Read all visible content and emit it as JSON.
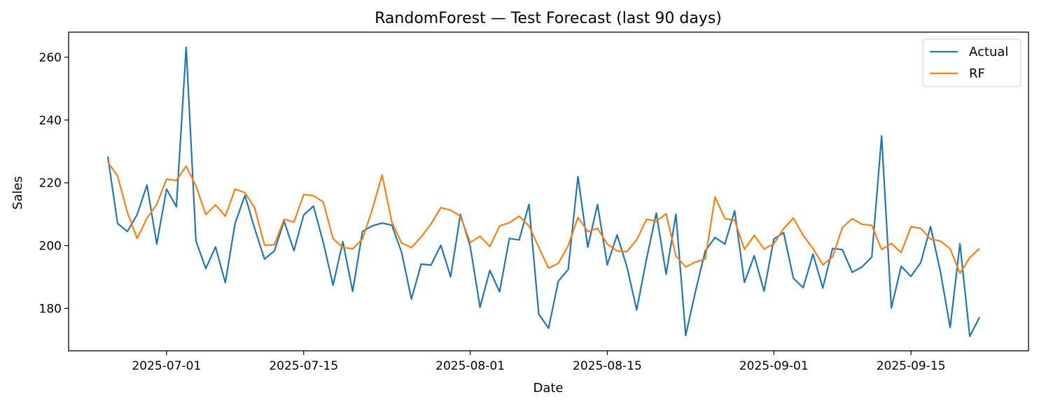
{
  "chart_data": {
    "type": "line",
    "title": "RandomForest — Test Forecast (last 90 days)",
    "xlabel": "Date",
    "ylabel": "Sales",
    "x_start": "2025-06-25",
    "x_end": "2025-09-23",
    "xlim": [
      "2025-06-21",
      "2025-09-27"
    ],
    "ylim": [
      166.5,
      268
    ],
    "yticks": [
      180,
      200,
      220,
      240,
      260
    ],
    "xticks": [
      "2025-07-01",
      "2025-07-15",
      "2025-08-01",
      "2025-08-15",
      "2025-09-01",
      "2025-09-15"
    ],
    "grid": false,
    "legend_position": "top-right",
    "series": [
      {
        "name": "Actual",
        "color": "#1f77b4",
        "values": [
          228.4,
          207.1,
          204.5,
          209.9,
          219.3,
          200.5,
          218.0,
          212.4,
          263.2,
          201.5,
          192.7,
          199.6,
          188.2,
          207.1,
          216.0,
          205.4,
          195.7,
          198.3,
          207.8,
          198.4,
          209.8,
          212.6,
          201.1,
          187.4,
          201.3,
          185.4,
          204.5,
          206.3,
          207.2,
          206.5,
          197.8,
          183.0,
          194.1,
          193.8,
          200.1,
          190.1,
          209.9,
          199.8,
          180.4,
          192.1,
          185.3,
          202.3,
          201.8,
          213.1,
          178.2,
          173.7,
          188.7,
          192.4,
          222.0,
          199.5,
          213.1,
          193.9,
          203.4,
          193.3,
          179.5,
          195.7,
          210.4,
          190.9,
          210.0,
          171.4,
          185.4,
          198.3,
          202.6,
          200.5,
          211.1,
          188.3,
          196.8,
          185.5,
          202.1,
          204.1,
          189.6,
          186.6,
          197.3,
          186.5,
          199.1,
          198.7,
          191.5,
          193.2,
          196.4,
          235.0,
          180.1,
          193.4,
          190.2,
          194.6,
          206.1,
          191.8,
          173.9,
          200.6,
          171.1,
          177.2
        ]
      },
      {
        "name": "RF",
        "color": "#ff7f0e",
        "values": [
          226.6,
          222.2,
          210.6,
          202.3,
          208.7,
          213.2,
          221.2,
          220.8,
          225.3,
          219.0,
          209.9,
          213.0,
          209.4,
          218.0,
          216.9,
          212.0,
          200.1,
          200.3,
          208.4,
          207.5,
          216.3,
          215.9,
          213.9,
          202.2,
          199.4,
          199.0,
          202.1,
          211.5,
          222.5,
          207.5,
          200.8,
          199.4,
          202.8,
          206.9,
          212.1,
          211.3,
          209.4,
          201.0,
          203.0,
          199.7,
          206.3,
          207.3,
          209.4,
          206.3,
          199.5,
          192.8,
          194.4,
          200.0,
          209.0,
          204.5,
          205.5,
          200.5,
          198.3,
          198.1,
          201.9,
          208.4,
          207.8,
          210.2,
          196.7,
          193.2,
          194.8,
          195.7,
          215.5,
          208.6,
          208.1,
          198.8,
          203.3,
          198.9,
          200.6,
          205.4,
          208.8,
          203.2,
          199.1,
          193.9,
          196.4,
          205.8,
          208.6,
          206.8,
          206.5,
          198.8,
          200.7,
          197.8,
          206.0,
          205.5,
          202.1,
          201.5,
          199.0,
          191.2,
          196.2,
          199.1
        ]
      }
    ]
  }
}
